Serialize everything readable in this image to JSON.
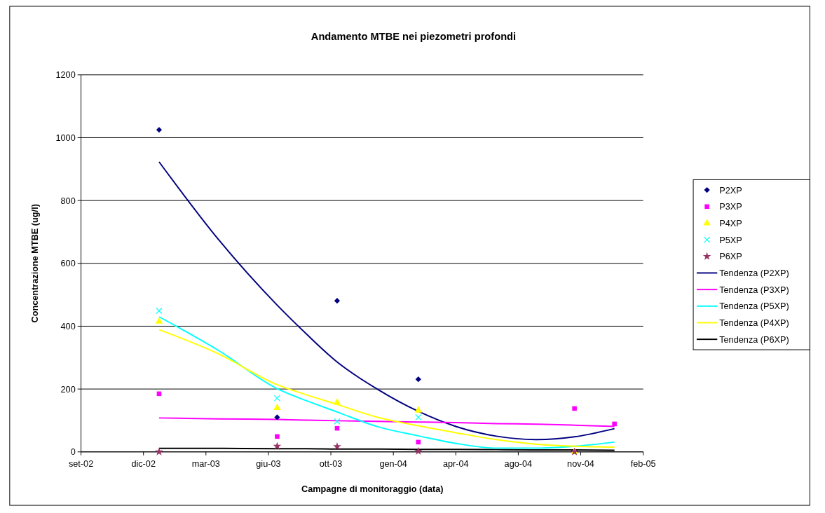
{
  "chart_data": {
    "type": "scatter",
    "title": "Andamento MTBE nei piezometri profondi",
    "xlabel": "Campagne di monitoraggio (data)",
    "ylabel": "Concentrazione MTBE (ug/l)",
    "x": [
      "2003-01-04",
      "2003-07-12",
      "2003-10-16",
      "2004-02-23",
      "2004-10-30",
      "2005-01-02"
    ],
    "xlim": [
      "2002-09-01",
      "2005-02-17"
    ],
    "xticks": [
      {
        "value": "2002-09-01",
        "label": "set-02"
      },
      {
        "value": "2002-12-10",
        "label": "dic-02"
      },
      {
        "value": "2003-03-20",
        "label": "mar-03"
      },
      {
        "value": "2003-06-28",
        "label": "giu-03"
      },
      {
        "value": "2003-10-06",
        "label": "ott-03"
      },
      {
        "value": "2004-01-14",
        "label": "gen-04"
      },
      {
        "value": "2004-04-23",
        "label": "apr-04"
      },
      {
        "value": "2004-08-01",
        "label": "ago-04"
      },
      {
        "value": "2004-11-09",
        "label": "nov-04"
      },
      {
        "value": "2005-02-17",
        "label": "feb-05"
      }
    ],
    "ylim": [
      0,
      1200
    ],
    "yticks": [
      0,
      200,
      400,
      600,
      800,
      1000,
      1200
    ],
    "grid": "y",
    "legend": "right",
    "series": [
      {
        "name": "P2XP",
        "color": "#000080",
        "marker": "diamond",
        "values": [
          1025,
          110,
          481,
          231,
          null,
          null
        ]
      },
      {
        "name": "P3XP",
        "color": "#ff00ff",
        "marker": "square",
        "values": [
          185,
          49,
          75,
          31,
          138,
          89
        ]
      },
      {
        "name": "P4XP",
        "color": "#ffff00",
        "marker": "triangle",
        "values": [
          415,
          140,
          157,
          132,
          0,
          null
        ]
      },
      {
        "name": "P5XP",
        "color": "#00ffff",
        "marker": "cross",
        "values": [
          449,
          171,
          97,
          110,
          null,
          null
        ]
      },
      {
        "name": "P6XP",
        "color": "#993366",
        "marker": "star",
        "values": [
          0,
          18,
          17,
          2,
          0,
          null
        ]
      },
      {
        "name": "Tendenza (P2XP)",
        "type": "line",
        "color": "#000080",
        "x": [
          "2003-01-04",
          "2003-04-09",
          "2003-07-12",
          "2003-08-29",
          "2003-10-16",
          "2003-12-20",
          "2004-02-23",
          "2004-04-23",
          "2004-06-27",
          "2004-08-31",
          "2004-10-30",
          "2005-01-02"
        ],
        "values": [
          923,
          676,
          467,
          373,
          286,
          199,
          129,
          81,
          50,
          39,
          48,
          74
        ]
      },
      {
        "name": "Tendenza (P3XP)",
        "type": "line",
        "color": "#ff00ff",
        "x": [
          "2003-01-04",
          "2003-04-09",
          "2003-07-12",
          "2003-08-29",
          "2003-10-16",
          "2003-12-20",
          "2004-02-23",
          "2004-04-23",
          "2004-06-27",
          "2004-08-31",
          "2004-10-30",
          "2005-01-02"
        ],
        "values": [
          108,
          105,
          103,
          101,
          99,
          97,
          95,
          93,
          90,
          88,
          85,
          81
        ]
      },
      {
        "name": "Tendenza (P5XP)",
        "type": "line",
        "color": "#00ffff",
        "x": [
          "2003-01-04",
          "2003-04-09",
          "2003-07-12",
          "2003-08-29",
          "2003-10-16",
          "2003-12-20",
          "2004-02-23",
          "2004-04-23",
          "2004-06-27",
          "2004-08-31",
          "2004-10-30",
          "2005-01-02"
        ],
        "values": [
          430,
          323,
          201,
          162,
          127,
          80,
          51,
          27,
          12,
          12,
          18,
          31
        ]
      },
      {
        "name": "Tendenza (P4XP)",
        "type": "line",
        "color": "#ffff00",
        "x": [
          "2003-01-04",
          "2003-04-09",
          "2003-07-12",
          "2003-08-29",
          "2003-10-16",
          "2003-12-20",
          "2004-02-23",
          "2004-04-23",
          "2004-06-27",
          "2004-08-31",
          "2004-10-30",
          "2005-01-02"
        ],
        "values": [
          389,
          312,
          214,
          181,
          151,
          110,
          83,
          61,
          39,
          24,
          18,
          15
        ]
      },
      {
        "name": "Tendenza (P6XP)",
        "type": "line",
        "color": "#000000",
        "x": [
          "2003-01-04",
          "2003-04-09",
          "2003-07-12",
          "2003-08-29",
          "2003-10-16",
          "2003-12-20",
          "2004-02-23",
          "2004-04-23",
          "2004-06-27",
          "2004-08-31",
          "2004-10-30",
          "2005-01-02"
        ],
        "values": [
          11,
          11,
          10,
          10,
          9,
          9,
          8,
          8,
          7,
          6,
          6,
          5
        ]
      }
    ]
  }
}
